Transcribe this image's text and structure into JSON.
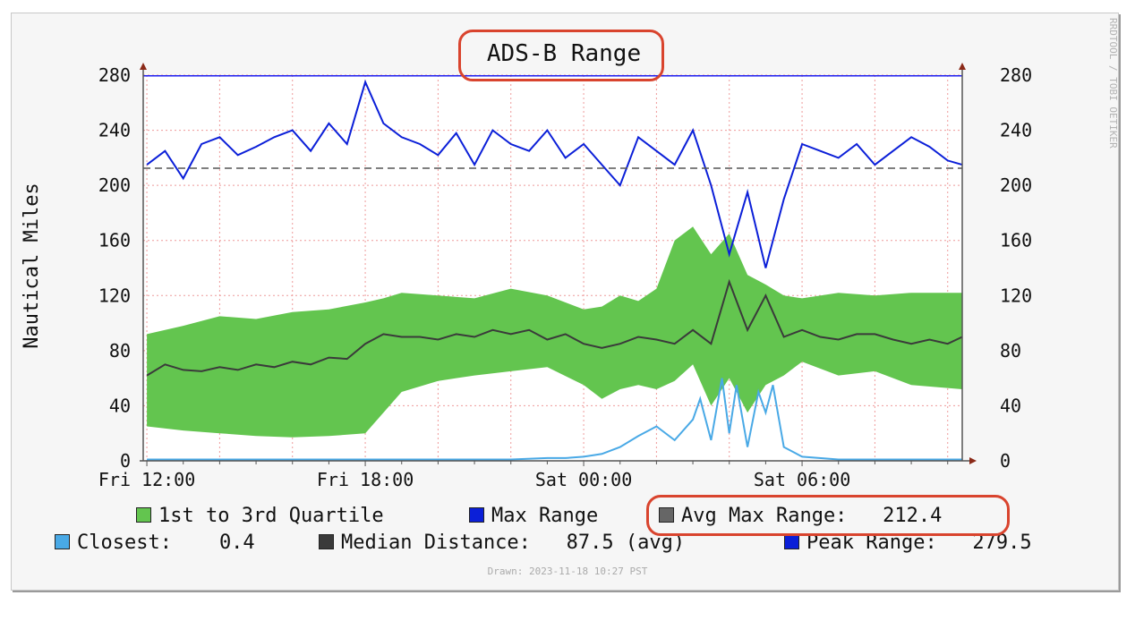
{
  "watermark": "RRDTOOL / TOBI OETIKER",
  "drawn": "Drawn: 2023-11-18 10:27 PST",
  "legend": {
    "quartile": {
      "label": "1st to 3rd Quartile",
      "color": "#63c54f"
    },
    "max_range": {
      "label": "Max Range",
      "color": "#0b1fd8"
    },
    "avg_max": {
      "text": "Avg Max Range:   212.4",
      "color": "#666666"
    },
    "closest": {
      "text": "Closest:    0.4",
      "color": "#49a9e6"
    },
    "median": {
      "text": "Median Distance:   87.5 (avg)",
      "color": "#3a3a3a"
    },
    "peak": {
      "text": "Peak Range:   279.5",
      "color": "#0b1fd8"
    }
  },
  "chart_data": {
    "type": "area",
    "title": "ADS-B Range",
    "ylabel": "Nautical Miles",
    "ylim": [
      0,
      280
    ],
    "yticks": [
      0,
      40,
      80,
      120,
      160,
      200,
      240,
      280
    ],
    "x_range_hours_from_fri_12_00": [
      -0.1,
      22.4
    ],
    "xticks": [
      {
        "label": "Fri 12:00",
        "hour": 0
      },
      {
        "label": "Fri 18:00",
        "hour": 6
      },
      {
        "label": "Sat 00:00",
        "hour": 12
      },
      {
        "label": "Sat 06:00",
        "hour": 18
      }
    ],
    "grid": true,
    "reference_lines": {
      "peak_range": 279.5,
      "avg_max_range": 212.4
    },
    "series": [
      {
        "name": "1st to 3rd Quartile",
        "kind": "band",
        "color": "#63c54f",
        "x": [
          0,
          1,
          2,
          3,
          4,
          5,
          6,
          6.5,
          7,
          8,
          9,
          10,
          11,
          12,
          12.5,
          13,
          13.5,
          14,
          14.5,
          15,
          15.5,
          16,
          16.5,
          17,
          17.5,
          18,
          19,
          20,
          21,
          22.4
        ],
        "low": [
          25,
          22,
          20,
          18,
          17,
          18,
          20,
          35,
          50,
          58,
          62,
          65,
          68,
          55,
          45,
          52,
          55,
          52,
          58,
          70,
          40,
          60,
          35,
          55,
          62,
          72,
          62,
          65,
          55,
          52
        ],
        "high": [
          92,
          98,
          105,
          103,
          108,
          110,
          115,
          118,
          122,
          120,
          118,
          125,
          120,
          110,
          112,
          120,
          116,
          125,
          160,
          170,
          150,
          165,
          135,
          128,
          120,
          118,
          122,
          120,
          122,
          122
        ]
      },
      {
        "name": "Max Range",
        "kind": "line",
        "color": "#0b1fd8",
        "x": [
          0,
          0.5,
          1,
          1.5,
          2,
          2.5,
          3,
          3.5,
          4,
          4.5,
          5,
          5.5,
          6,
          6.5,
          7,
          7.5,
          8,
          8.5,
          9,
          9.5,
          10,
          10.5,
          11,
          11.5,
          12,
          12.5,
          13,
          13.5,
          14,
          14.5,
          15,
          15.5,
          16,
          16.5,
          17,
          17.5,
          18,
          18.5,
          19,
          19.5,
          20,
          20.5,
          21,
          21.5,
          22,
          22.4
        ],
        "y": [
          215,
          225,
          205,
          230,
          235,
          222,
          228,
          235,
          240,
          225,
          245,
          230,
          275,
          245,
          235,
          230,
          222,
          238,
          215,
          240,
          230,
          225,
          240,
          220,
          230,
          215,
          200,
          235,
          225,
          215,
          240,
          200,
          150,
          195,
          140,
          190,
          230,
          225,
          220,
          230,
          215,
          225,
          235,
          228,
          218,
          215
        ]
      },
      {
        "name": "Median Distance",
        "kind": "line",
        "color": "#3a3a3a",
        "x": [
          0,
          0.5,
          1,
          1.5,
          2,
          2.5,
          3,
          3.5,
          4,
          4.5,
          5,
          5.5,
          6,
          6.5,
          7,
          7.5,
          8,
          8.5,
          9,
          9.5,
          10,
          10.5,
          11,
          11.5,
          12,
          12.5,
          13,
          13.5,
          14,
          14.5,
          15,
          15.5,
          16,
          16.5,
          17,
          17.5,
          18,
          18.5,
          19,
          19.5,
          20,
          20.5,
          21,
          21.5,
          22,
          22.4
        ],
        "y": [
          62,
          70,
          66,
          65,
          68,
          66,
          70,
          68,
          72,
          70,
          75,
          74,
          85,
          92,
          90,
          90,
          88,
          92,
          90,
          95,
          92,
          95,
          88,
          92,
          85,
          82,
          85,
          90,
          88,
          85,
          95,
          85,
          130,
          95,
          120,
          90,
          95,
          90,
          88,
          92,
          92,
          88,
          85,
          88,
          85,
          90
        ]
      },
      {
        "name": "Closest",
        "kind": "line",
        "color": "#49a9e6",
        "x": [
          0,
          1,
          2,
          3,
          4,
          5,
          6,
          7,
          8,
          9,
          10,
          11,
          11.5,
          12,
          12.5,
          13,
          13.5,
          14,
          14.5,
          15,
          15.2,
          15.5,
          15.8,
          16,
          16.2,
          16.5,
          16.8,
          17,
          17.2,
          17.5,
          18,
          19,
          20,
          21,
          22.4
        ],
        "y": [
          1,
          1,
          1,
          1,
          1,
          1,
          1,
          1,
          1,
          1,
          1,
          2,
          2,
          3,
          5,
          10,
          18,
          25,
          15,
          30,
          45,
          15,
          60,
          20,
          55,
          10,
          50,
          35,
          55,
          10,
          3,
          1,
          1,
          1,
          1
        ]
      }
    ]
  }
}
